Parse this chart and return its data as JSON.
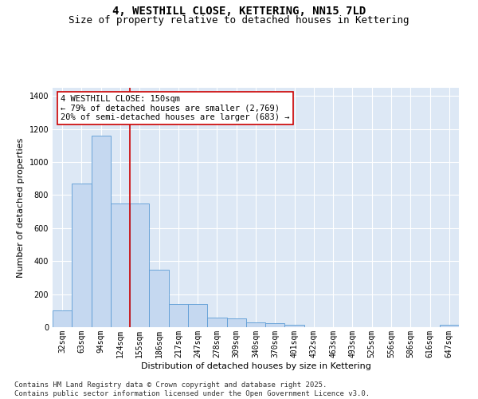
{
  "title": "4, WESTHILL CLOSE, KETTERING, NN15 7LD",
  "subtitle": "Size of property relative to detached houses in Kettering",
  "xlabel": "Distribution of detached houses by size in Kettering",
  "ylabel": "Number of detached properties",
  "categories": [
    "32sqm",
    "63sqm",
    "94sqm",
    "124sqm",
    "155sqm",
    "186sqm",
    "217sqm",
    "247sqm",
    "278sqm",
    "309sqm",
    "340sqm",
    "370sqm",
    "401sqm",
    "432sqm",
    "463sqm",
    "493sqm",
    "525sqm",
    "556sqm",
    "586sqm",
    "616sqm",
    "647sqm"
  ],
  "values": [
    100,
    870,
    1160,
    750,
    750,
    350,
    140,
    140,
    60,
    55,
    30,
    25,
    15,
    0,
    0,
    0,
    0,
    0,
    0,
    0,
    15
  ],
  "bar_color": "#c5d8f0",
  "bar_edge_color": "#5b9bd5",
  "vline_color": "#cc0000",
  "vline_idx": 4,
  "annotation_text": "4 WESTHILL CLOSE: 150sqm\n← 79% of detached houses are smaller (2,769)\n20% of semi-detached houses are larger (683) →",
  "annotation_box_color": "#cc0000",
  "ylim": [
    0,
    1450
  ],
  "yticks": [
    0,
    200,
    400,
    600,
    800,
    1000,
    1200,
    1400
  ],
  "bg_color": "#dde8f5",
  "grid_color": "#ffffff",
  "footer_line1": "Contains HM Land Registry data © Crown copyright and database right 2025.",
  "footer_line2": "Contains public sector information licensed under the Open Government Licence v3.0.",
  "title_fontsize": 10,
  "subtitle_fontsize": 9,
  "axis_label_fontsize": 8,
  "tick_fontsize": 7,
  "annotation_fontsize": 7.5,
  "footer_fontsize": 6.5
}
